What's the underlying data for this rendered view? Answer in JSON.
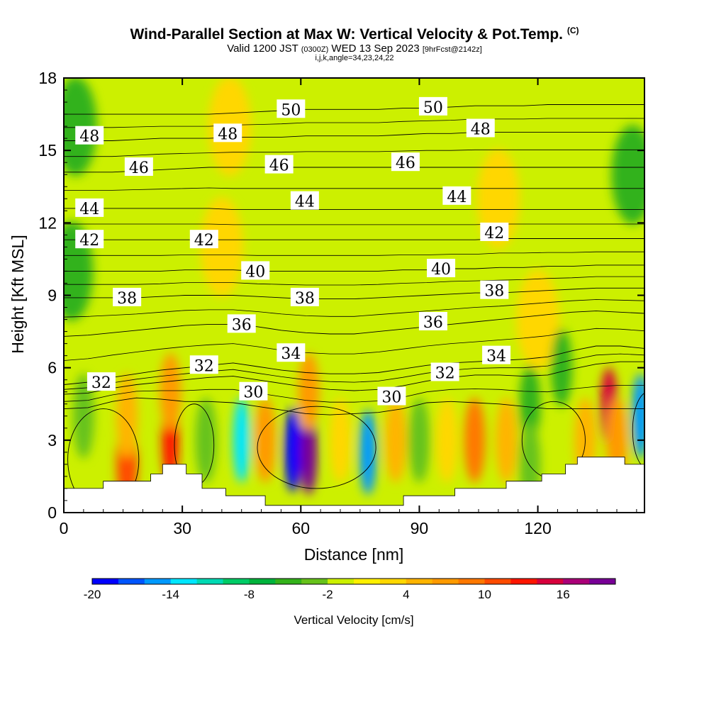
{
  "header": {
    "title": "Wind-Parallel Section at Max W: Vertical Velocity & Pot.Temp.",
    "copyright": "(C)",
    "valid_pre": "Valid 1200 JST",
    "valid_utc": "(0300Z)",
    "valid_post": "WED 13 Sep 2023",
    "forecast": "[9hrFcst@2142z]",
    "indices": "i,j,k,angle=34,23,24,22"
  },
  "chart_data": {
    "type": "heatmap",
    "xlabel": "Distance [nm]",
    "ylabel": "Height [Kft MSL]",
    "xlim": [
      0,
      147
    ],
    "ylim": [
      0,
      18
    ],
    "x_ticks": [
      0,
      30,
      60,
      90,
      120
    ],
    "y_ticks": [
      0,
      3,
      6,
      9,
      12,
      15,
      18
    ],
    "grid": false,
    "colorbar": {
      "label": "Vertical Velocity [cm/s]",
      "placement": "bottom",
      "min": -20,
      "max": 20,
      "step": 2,
      "tick_values": [
        -20,
        -14,
        -8,
        -2,
        4,
        10,
        16
      ],
      "colors": [
        "#0000ff",
        "#0055ff",
        "#0099ff",
        "#00e6ff",
        "#00d9b3",
        "#00cc66",
        "#00b33c",
        "#33b21a",
        "#66c21a",
        "#ccf000",
        "#fff000",
        "#ffd700",
        "#ffb400",
        "#ff9a00",
        "#ff7800",
        "#ff4b00",
        "#ff1500",
        "#d7003c",
        "#aa0078",
        "#780096"
      ]
    },
    "vertical_velocity_cells": [
      {
        "x": 2,
        "z": 10,
        "w": -6
      },
      {
        "x": 3,
        "z": 16,
        "w": -6
      },
      {
        "x": 5,
        "z": 4,
        "w": -4
      },
      {
        "x": 16,
        "z": 2,
        "w": 10
      },
      {
        "x": 16,
        "z": 4,
        "w": 4
      },
      {
        "x": 27,
        "z": 3,
        "w": 12
      },
      {
        "x": 27,
        "z": 5,
        "w": 6
      },
      {
        "x": 36,
        "z": 3,
        "w": -4
      },
      {
        "x": 40,
        "z": 11,
        "w": 2
      },
      {
        "x": 42,
        "z": 16,
        "w": 2
      },
      {
        "x": 45,
        "z": 3,
        "w": -14
      },
      {
        "x": 51,
        "z": 3,
        "w": 6
      },
      {
        "x": 58,
        "z": 2.6,
        "w": -20
      },
      {
        "x": 62,
        "z": 2.5,
        "w": 18
      },
      {
        "x": 62,
        "z": 5,
        "w": 6
      },
      {
        "x": 70,
        "z": 3,
        "w": 2
      },
      {
        "x": 77,
        "z": 2.5,
        "w": -16
      },
      {
        "x": 84,
        "z": 3,
        "w": 4
      },
      {
        "x": 90,
        "z": 3,
        "w": -4
      },
      {
        "x": 97,
        "z": 3,
        "w": 2
      },
      {
        "x": 104,
        "z": 3,
        "w": 8
      },
      {
        "x": 112,
        "z": 3,
        "w": 4
      },
      {
        "x": 118,
        "z": 4.5,
        "w": -6
      },
      {
        "x": 118,
        "z": 2,
        "w": -4
      },
      {
        "x": 120,
        "z": 8,
        "w": 2
      },
      {
        "x": 110,
        "z": 13,
        "w": 2
      },
      {
        "x": 132,
        "z": 3,
        "w": 4
      },
      {
        "x": 138,
        "z": 4.4,
        "w": 14
      },
      {
        "x": 140,
        "z": 3,
        "w": 6
      },
      {
        "x": 146,
        "z": 4,
        "w": -16
      },
      {
        "x": 144,
        "z": 14,
        "w": -6
      },
      {
        "x": 126,
        "z": 6,
        "w": -6
      }
    ],
    "terrain_height": [
      [
        0,
        1
      ],
      [
        10,
        1
      ],
      [
        10,
        1.3
      ],
      [
        22,
        1.3
      ],
      [
        22,
        1.6
      ],
      [
        25,
        1.6
      ],
      [
        25,
        2
      ],
      [
        31,
        2
      ],
      [
        31,
        1.6
      ],
      [
        35,
        1.6
      ],
      [
        35,
        1
      ],
      [
        41,
        1
      ],
      [
        41,
        0.7
      ],
      [
        51,
        0.7
      ],
      [
        51,
        0.3
      ],
      [
        86,
        0.3
      ],
      [
        86,
        0.7
      ],
      [
        99,
        0.7
      ],
      [
        99,
        1
      ],
      [
        112,
        1
      ],
      [
        112,
        1.3
      ],
      [
        121,
        1.3
      ],
      [
        121,
        1.6
      ],
      [
        127,
        1.6
      ],
      [
        127,
        2
      ],
      [
        130,
        2
      ],
      [
        130,
        2.3
      ],
      [
        142,
        2.3
      ],
      [
        142,
        2
      ],
      [
        147,
        2
      ]
    ],
    "potential_temperature_contours": [
      {
        "level": 30,
        "z": [
          4.3,
          4.35,
          4.6,
          4.75,
          4.7,
          4.6,
          4.6,
          4.55,
          4.4,
          4.25,
          4.1,
          4.05,
          4.1,
          4.15,
          4.3,
          4.55,
          4.6,
          4.55,
          4.5,
          4.4,
          4.3,
          4.3,
          4.3,
          4.3,
          4.3
        ]
      },
      {
        "level": 32,
        "z": [
          4.9,
          4.95,
          5.15,
          5.3,
          5.4,
          5.5,
          5.6,
          5.65,
          5.5,
          5.35,
          5.2,
          5.1,
          5.05,
          5.1,
          5.25,
          5.45,
          5.6,
          5.7,
          5.7,
          5.65,
          5.7,
          5.95,
          6.15,
          6.25,
          6.25
        ]
      },
      {
        "level": 34,
        "z": [
          5.3,
          5.4,
          5.6,
          5.75,
          5.9,
          6.0,
          6.1,
          6.2,
          6.05,
          5.9,
          5.8,
          5.75,
          5.75,
          5.8,
          5.95,
          6.1,
          6.2,
          6.25,
          6.3,
          6.35,
          6.45,
          6.7,
          6.9,
          6.9,
          6.8
        ]
      },
      {
        "level": 36,
        "z": [
          7.3,
          7.35,
          7.45,
          7.55,
          7.65,
          7.75,
          7.8,
          7.8,
          7.7,
          7.55,
          7.45,
          7.4,
          7.4,
          7.5,
          7.6,
          7.7,
          7.8,
          7.9,
          8.0,
          8.1,
          8.2,
          8.3,
          8.35,
          8.3,
          8.25
        ]
      },
      {
        "level": 38,
        "z": [
          8.9,
          8.9,
          8.9,
          8.9,
          8.95,
          9.0,
          9.0,
          9.0,
          8.95,
          8.9,
          8.85,
          8.85,
          8.85,
          8.9,
          8.95,
          9.0,
          9.05,
          9.1,
          9.1,
          9.15,
          9.2,
          9.25,
          9.3,
          9.3,
          9.3
        ]
      },
      {
        "level": 40,
        "z": [
          10.0,
          10.0,
          10.0,
          10.0,
          10.0,
          10.05,
          10.05,
          10.05,
          10.0,
          10.0,
          10.0,
          10.0,
          10.0,
          10.0,
          10.05,
          10.05,
          10.1,
          10.1,
          10.15,
          10.15,
          10.2,
          10.2,
          10.25,
          10.25,
          10.25
        ]
      },
      {
        "level": 42,
        "z": [
          11.3,
          11.3,
          11.3,
          11.3,
          11.3,
          11.3,
          11.3,
          11.3,
          11.3,
          11.3,
          11.3,
          11.3,
          11.3,
          11.3,
          11.3,
          11.3,
          11.3,
          11.3,
          11.35,
          11.35,
          11.35,
          11.35,
          11.35,
          11.35,
          11.35
        ]
      },
      {
        "level": 44,
        "z": [
          12.6,
          12.6,
          12.6,
          12.6,
          12.6,
          12.6,
          12.6,
          12.55,
          12.55,
          12.55,
          12.55,
          12.55,
          12.55,
          12.55,
          12.55,
          12.55,
          12.55,
          12.55,
          12.55,
          12.55,
          12.55,
          12.55,
          12.55,
          12.55,
          12.55
        ]
      },
      {
        "level": 46,
        "z": [
          14.1,
          14.1,
          14.1,
          14.15,
          14.2,
          14.25,
          14.3,
          14.3,
          14.3,
          14.3,
          14.3,
          14.3,
          14.3,
          14.3,
          14.3,
          14.3,
          14.3,
          14.3,
          14.3,
          14.3,
          14.3,
          14.3,
          14.3,
          14.3,
          14.3
        ]
      },
      {
        "level": 48,
        "z": [
          15.4,
          15.4,
          15.4,
          15.45,
          15.5,
          15.5,
          15.5,
          15.55,
          15.55,
          15.55,
          15.6,
          15.6,
          15.6,
          15.6,
          15.65,
          15.7,
          15.7,
          15.75,
          15.75,
          15.75,
          15.75,
          15.75,
          15.75,
          15.75,
          15.75
        ]
      },
      {
        "level": 50,
        "z": [
          16.5,
          16.5,
          16.5,
          16.5,
          16.5,
          16.5,
          16.5,
          16.55,
          16.6,
          16.65,
          16.7,
          16.7,
          16.7,
          16.7,
          16.75,
          16.75,
          16.8,
          16.85,
          16.85,
          16.85,
          16.9,
          16.9,
          16.9,
          16.9,
          16.9
        ]
      }
    ],
    "contour_labels": [
      {
        "text": "30",
        "x": 48,
        "z": 5.0
      },
      {
        "text": "30",
        "x": 83,
        "z": 4.8
      },
      {
        "text": "32",
        "x": 9.5,
        "z": 5.4
      },
      {
        "text": "32",
        "x": 35.5,
        "z": 6.1
      },
      {
        "text": "32",
        "x": 96.5,
        "z": 5.8
      },
      {
        "text": "34",
        "x": 57.5,
        "z": 6.6
      },
      {
        "text": "34",
        "x": 109.5,
        "z": 6.5
      },
      {
        "text": "36",
        "x": 45,
        "z": 7.8
      },
      {
        "text": "36",
        "x": 93.5,
        "z": 7.9
      },
      {
        "text": "38",
        "x": 16,
        "z": 8.9
      },
      {
        "text": "38",
        "x": 61,
        "z": 8.9
      },
      {
        "text": "38",
        "x": 109,
        "z": 9.2
      },
      {
        "text": "40",
        "x": 48.5,
        "z": 10.0
      },
      {
        "text": "40",
        "x": 95.5,
        "z": 10.1
      },
      {
        "text": "42",
        "x": 6.5,
        "z": 11.3
      },
      {
        "text": "42",
        "x": 35.5,
        "z": 11.3
      },
      {
        "text": "42",
        "x": 109,
        "z": 11.6
      },
      {
        "text": "44",
        "x": 6.5,
        "z": 12.6
      },
      {
        "text": "44",
        "x": 61,
        "z": 12.9
      },
      {
        "text": "44",
        "x": 99.5,
        "z": 13.1
      },
      {
        "text": "46",
        "x": 19,
        "z": 14.3
      },
      {
        "text": "46",
        "x": 54.5,
        "z": 14.4
      },
      {
        "text": "46",
        "x": 86.5,
        "z": 14.5
      },
      {
        "text": "48",
        "x": 6.5,
        "z": 15.6
      },
      {
        "text": "48",
        "x": 41.5,
        "z": 15.7
      },
      {
        "text": "48",
        "x": 105.5,
        "z": 15.9
      },
      {
        "text": "50",
        "x": 57.5,
        "z": 16.7
      },
      {
        "text": "50",
        "x": 93.5,
        "z": 16.8
      }
    ],
    "closed_contours": [
      {
        "cx": 10,
        "cz": 2.2,
        "rx": 9,
        "rz": 2.1
      },
      {
        "cx": 33,
        "cz": 2.8,
        "rx": 5,
        "rz": 1.7
      },
      {
        "cx": 64,
        "cz": 2.7,
        "rx": 15,
        "rz": 1.7
      },
      {
        "cx": 124,
        "cz": 3.0,
        "rx": 8,
        "rz": 1.6
      },
      {
        "cx": 148,
        "cz": 3.4,
        "rx": 4,
        "rz": 1.6
      }
    ]
  }
}
